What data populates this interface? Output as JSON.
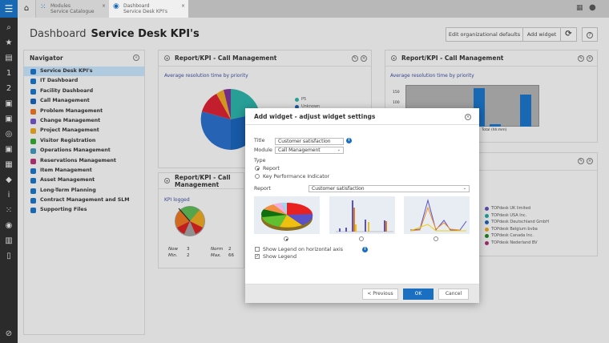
{
  "tabs": [
    {
      "line1": "Modules",
      "line2": "Service Catalogue"
    },
    {
      "line1": "Dashboard",
      "line2": "Service Desk KPI's"
    }
  ],
  "page": {
    "section": "Dashboard",
    "title": "Service Desk KPI's"
  },
  "toolbar": {
    "edit_defaults": "Edit organizational defaults",
    "add_widget": "Add widget",
    "refresh": "⟳",
    "help": "?"
  },
  "navigator": {
    "title": "Navigator",
    "items": [
      {
        "label": "Service Desk KPI's",
        "color": "#1a6fc0"
      },
      {
        "label": "IT Dashboard",
        "color": "#1a6fc0"
      },
      {
        "label": "Facility Dashboard",
        "color": "#1a6fc0"
      },
      {
        "label": "Call Management",
        "color": "#1a5fb0"
      },
      {
        "label": "Problem Management",
        "color": "#e07020"
      },
      {
        "label": "Change Management",
        "color": "#7050c0"
      },
      {
        "label": "Project Management",
        "color": "#e0a020"
      },
      {
        "label": "Visitor Registration",
        "color": "#30a030"
      },
      {
        "label": "Operations Management",
        "color": "#4090b0"
      },
      {
        "label": "Reservations Management",
        "color": "#b03070"
      },
      {
        "label": "Item Management",
        "color": "#1a6fc0"
      },
      {
        "label": "Asset Management",
        "color": "#1a6fc0"
      },
      {
        "label": "Long-Term Planning",
        "color": "#1a6fc0"
      },
      {
        "label": "Contract Management and SLM",
        "color": "#1a6fc0"
      },
      {
        "label": "Supporting Files",
        "color": "#1a6fc0"
      }
    ]
  },
  "widgets": [
    {
      "title": "Report/KPI - Call Management",
      "subtitle": "Average resolution time by priority",
      "legend": [
        "P5",
        "Unknown"
      ]
    },
    {
      "title": "Report/KPI - Call Management",
      "subtitle": "Average resolution time by priority",
      "yticks": [
        "150",
        "100"
      ],
      "xlabel": "Total (hh:mm)"
    },
    {
      "title": "Report/KPI - Call Management",
      "subtitle": "KPI logged",
      "now_label": "Now",
      "now": "3",
      "min_label": "Min.",
      "min": "2",
      "norm_label": "Norm",
      "norm": "2",
      "max_label": "Max.",
      "max": "66"
    },
    {
      "legend": [
        {
          "label": "TOPdesk UK limited",
          "color": "#5a4fb0"
        },
        {
          "label": "TOPdesk USA Inc.",
          "color": "#20a0a0"
        },
        {
          "label": "TOPdesk Deutschland GmbH",
          "color": "#1a5fb0"
        },
        {
          "label": "TOPdesk Belgium bvba",
          "color": "#e0a020"
        },
        {
          "label": "TOPdesk Canada Inc.",
          "color": "#208020"
        },
        {
          "label": "TOPdesk Nederland BV",
          "color": "#a03070"
        }
      ]
    }
  ],
  "modal": {
    "title": "Add widget - adjust widget settings",
    "title_label": "Title",
    "title_value": "Customer satisfaction",
    "module_label": "Module",
    "module_value": "Call Management",
    "type_label": "Type",
    "type_report": "Report",
    "type_kpi": "Key Performance Indicator",
    "type_selected": "Report",
    "report_label": "Report",
    "report_value": "Customer satisfaction",
    "chart_type_selected": "pie",
    "show_legend_horizontal": "Show Legend on horizontal axis",
    "show_legend_horizontal_checked": false,
    "show_legend": "Show Legend",
    "show_legend_checked": true,
    "previous": "< Previous",
    "ok": "OK",
    "cancel": "Cancel"
  },
  "colors": {
    "accent": "#1a6fc0",
    "rail": "#2e2e2e"
  }
}
